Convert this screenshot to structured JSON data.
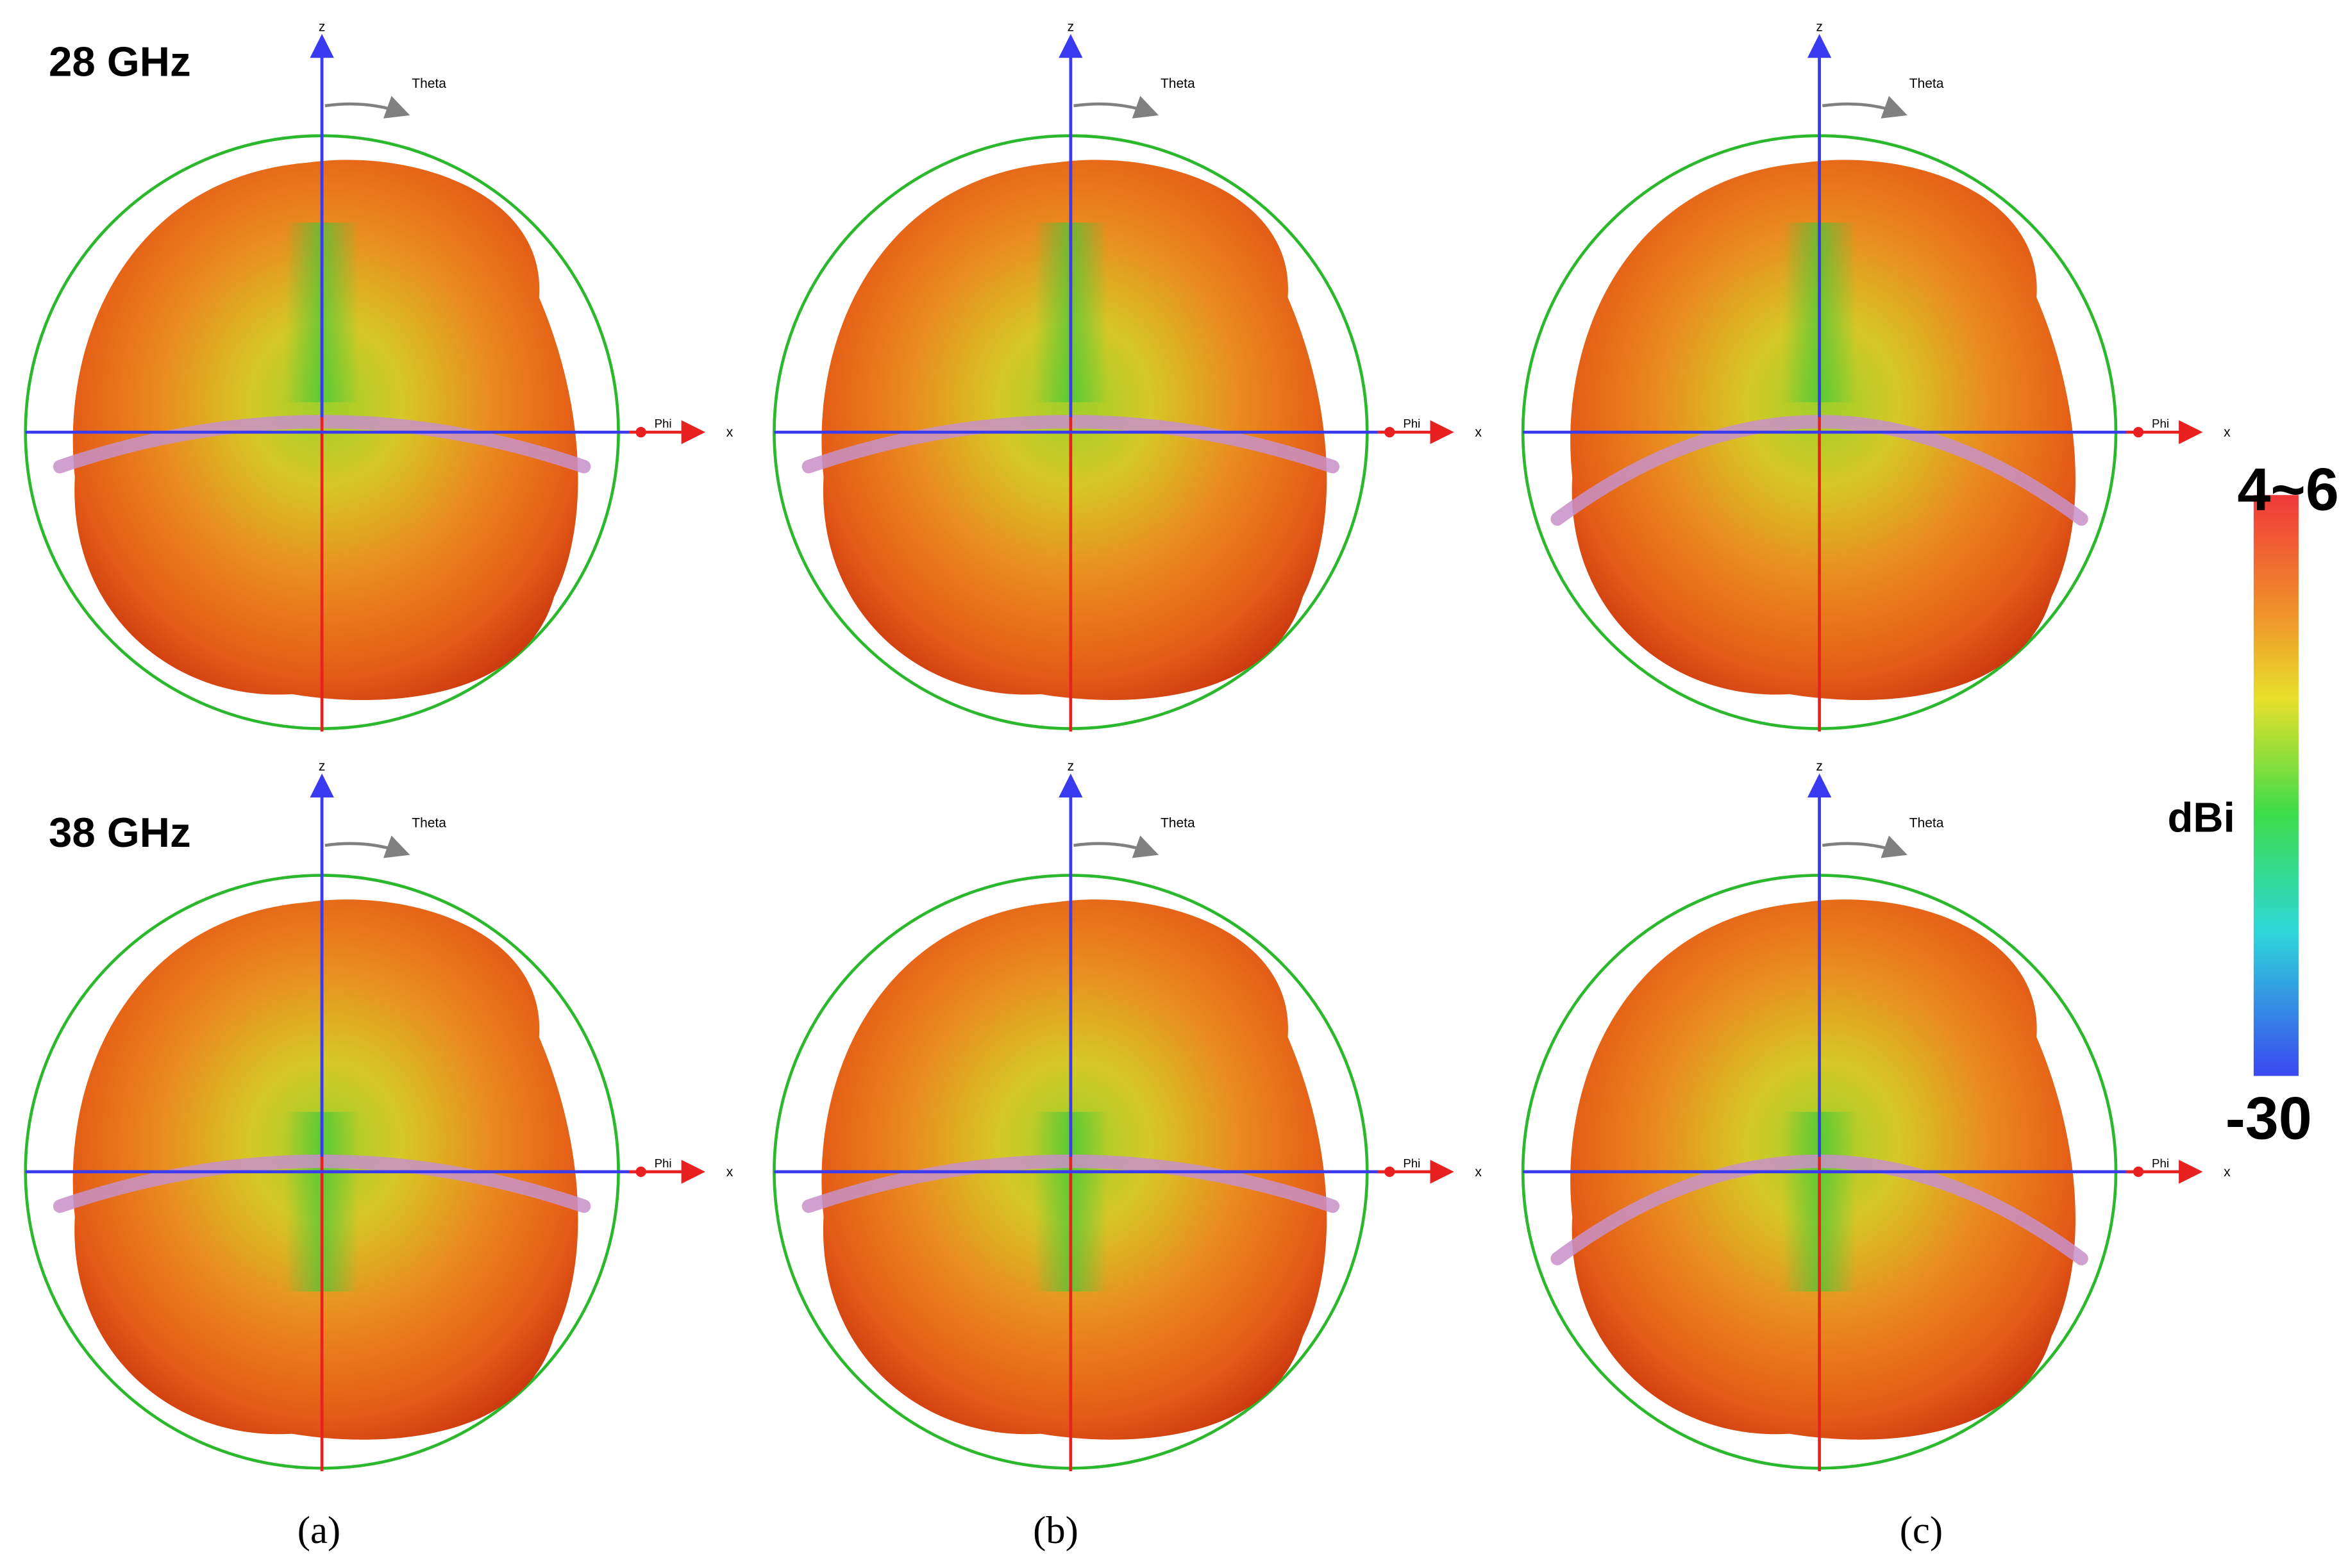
{
  "row_labels": [
    "28 GHz",
    "38 GHz"
  ],
  "panel_labels": [
    "(a)",
    "(b)",
    "(c)"
  ],
  "axis_labels": {
    "z": "z",
    "x": "x",
    "theta": "Theta",
    "phi": "Phi"
  },
  "colorbar": {
    "max_label": "4~6",
    "min_label": "-30",
    "unit": "dBi"
  }
}
